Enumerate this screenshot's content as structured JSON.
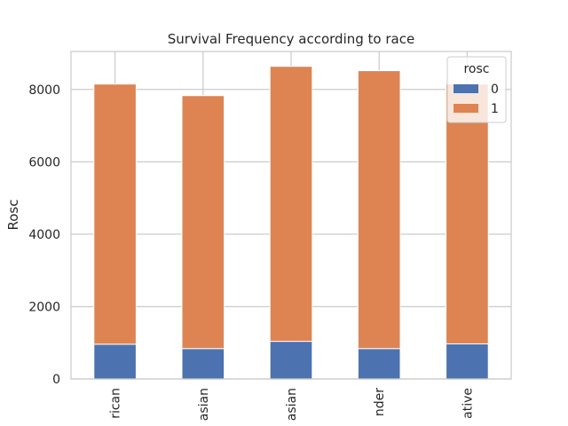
{
  "chart_data": {
    "type": "bar",
    "stacked": true,
    "title": "Survival Frequency according to race",
    "xlabel": "",
    "ylabel": "Rosc",
    "categories": [
      "rican",
      "asian",
      "asian",
      "nder",
      "ative"
    ],
    "series": [
      {
        "name": "0",
        "values": [
          960,
          840,
          1040,
          840,
          970
        ],
        "color": "#4c72b0"
      },
      {
        "name": "1",
        "values": [
          7190,
          6990,
          7600,
          7680,
          7180
        ],
        "color": "#dd8452"
      }
    ],
    "ylim": [
      0,
      9050
    ],
    "yticks": [
      0,
      2000,
      4000,
      6000,
      8000
    ],
    "grid": true,
    "legend": {
      "title": "rosc",
      "placement": "top-right"
    }
  }
}
